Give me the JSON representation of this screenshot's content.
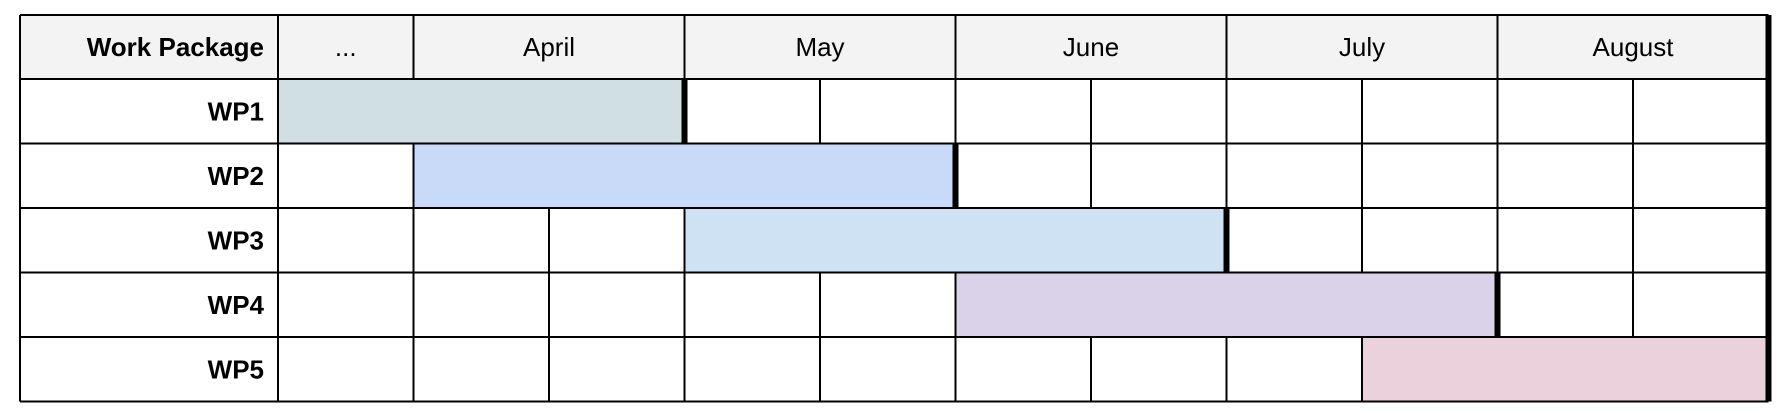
{
  "chart_data": {
    "type": "gantt",
    "row_header_title": "Work Package",
    "columns": [
      {
        "label": "...",
        "subcolumns": 1
      },
      {
        "label": "April",
        "subcolumns": 2
      },
      {
        "label": "May",
        "subcolumns": 2
      },
      {
        "label": "June",
        "subcolumns": 2
      },
      {
        "label": "July",
        "subcolumns": 2
      },
      {
        "label": "August",
        "subcolumns": 2
      }
    ],
    "tasks": [
      {
        "name": "WP1",
        "start": 0,
        "end": 3,
        "color": "#d0dfe3",
        "end_marker": true
      },
      {
        "name": "WP2",
        "start": 1,
        "end": 5,
        "color": "#c9daf8",
        "end_marker": true
      },
      {
        "name": "WP3",
        "start": 3,
        "end": 7,
        "color": "#cfe2f3",
        "end_marker": true
      },
      {
        "name": "WP4",
        "start": 5,
        "end": 9,
        "color": "#d9d2e9",
        "end_marker": true
      },
      {
        "name": "WP5",
        "start": 8,
        "end": 11,
        "color": "#ead1dc",
        "end_marker": false
      }
    ],
    "header_background": "#f3f3f3",
    "grid_color": "#000000"
  }
}
